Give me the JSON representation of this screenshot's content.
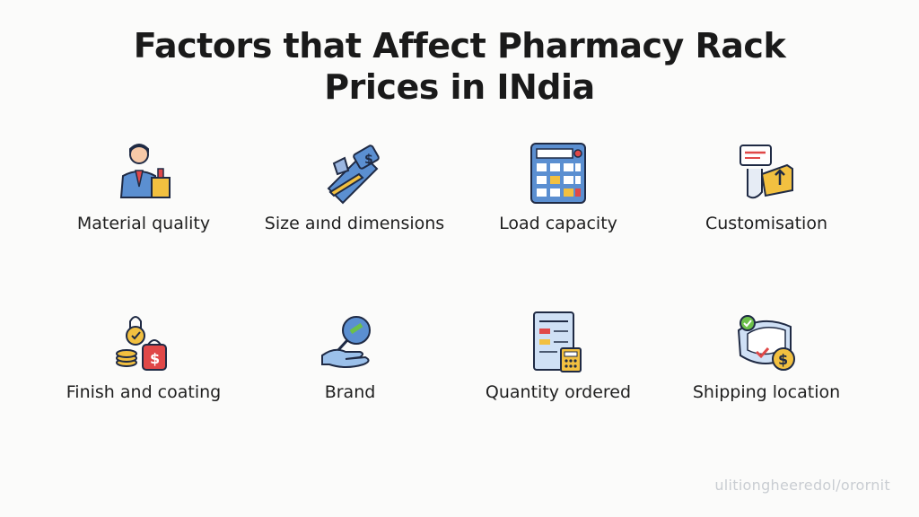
{
  "title": {
    "line1": "Factors that Affect Pharmacy Rack",
    "line2": "Prices in INdia"
  },
  "factors": [
    {
      "label": "Material quality",
      "icon": "business-person-icon"
    },
    {
      "label": "Size aınd dimensions",
      "icon": "measuring-pencil-price-tag-icon"
    },
    {
      "label": "Load capacity",
      "icon": "calculator-icon"
    },
    {
      "label": "Customisation",
      "icon": "custom-order-tag-icon"
    },
    {
      "label": "Finish and coating",
      "icon": "lock-coins-price-bag-icon"
    },
    {
      "label": "Brand",
      "icon": "hand-magnifier-icon"
    },
    {
      "label": "Quantity ordered",
      "icon": "order-sheet-calculator-icon"
    },
    {
      "label": "Shipping location",
      "icon": "package-dollar-check-icon"
    }
  ],
  "watermark": "ulitiongheeredol/orornit",
  "colors": {
    "blue": "#5b8fd1",
    "yellow": "#f2c040",
    "red": "#e04848",
    "outline": "#1f2a44"
  }
}
